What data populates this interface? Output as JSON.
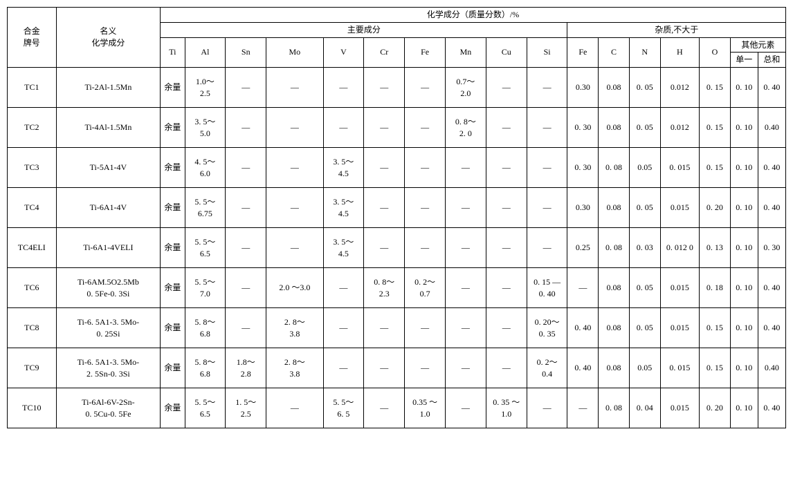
{
  "headers": {
    "grade": "合金\n牌号",
    "name": "名义\n化学成分",
    "chem_top": "化学成分（质量分数）/%",
    "main": "主要成分",
    "imp": "杂质,不大于",
    "other": "其他元素",
    "single": "单一",
    "total": "总和",
    "main_cols": [
      "Ti",
      "Al",
      "Sn",
      "Mo",
      "V",
      "Cr",
      "Fe",
      "Mn",
      "Cu",
      "Si"
    ],
    "imp_cols": [
      "Fe",
      "C",
      "N",
      "H",
      "O"
    ]
  },
  "rows": [
    {
      "g": "TC1",
      "n": "Ti-2Al-1.5Mn",
      "m": [
        "余量",
        "1.0～\n2.5",
        "—",
        "—",
        "—",
        "—",
        "—",
        "0.7～\n2.0",
        "—",
        "—"
      ],
      "i": [
        "0.30",
        "0.08",
        "0. 05",
        "0.012",
        "0. 15",
        "0. 10",
        "0. 40"
      ]
    },
    {
      "g": "TC2",
      "n": "Ti-4Al-1.5Mn",
      "m": [
        "余量",
        "3. 5～\n5.0",
        "—",
        "—",
        "—",
        "—",
        "—",
        "0. 8～\n2. 0",
        "—",
        "—"
      ],
      "i": [
        "0. 30",
        "0.08",
        "0. 05",
        "0.012",
        "0. 15",
        "0. 10",
        "0.40"
      ]
    },
    {
      "g": "TC3",
      "n": "Ti-5A1-4V",
      "m": [
        "余量",
        "4. 5～\n6.0",
        "—",
        "—",
        "3. 5～\n4.5",
        "—",
        "—",
        "—",
        "—",
        "—"
      ],
      "i": [
        "0. 30",
        "0. 08",
        "0.05",
        "0. 015",
        "0. 15",
        "0. 10",
        "0. 40"
      ]
    },
    {
      "g": "TC4",
      "n": "Ti-6A1-4V",
      "m": [
        "余量",
        "5. 5～\n6.75",
        "—",
        "—",
        "3. 5～\n4.5",
        "—",
        "—",
        "—",
        "—",
        "—"
      ],
      "i": [
        "0.30",
        "0.08",
        "0. 05",
        "0.015",
        "0. 20",
        "0. 10",
        "0. 40"
      ]
    },
    {
      "g": "TC4ELI",
      "n": "Ti-6A1-4VELI",
      "m": [
        "余量",
        "5. 5～\n6.5",
        "—",
        "—",
        "3. 5～\n4.5",
        "—",
        "—",
        "—",
        "—",
        "—"
      ],
      "i": [
        "0.25",
        "0. 08",
        "0. 03",
        "0. 012 0",
        "0. 13",
        "0. 10",
        "0. 30"
      ]
    },
    {
      "g": "TC6",
      "n": "Ti-6AM.5O2.5Mb\n0. 5Fe-0. 3Si",
      "m": [
        "余量",
        "5. 5～\n7.0",
        "—",
        "2.0  ～3.0",
        "—",
        "0. 8～\n2.3",
        "0. 2～\n0.7",
        "—",
        "—",
        "0. 15 —\n0. 40"
      ],
      "i": [
        "—",
        "0.08",
        "0. 05",
        "0.015",
        "0. 18",
        "0. 10",
        "0. 40"
      ]
    },
    {
      "g": "TC8",
      "n": "Ti-6. 5A1-3. 5Mo-\n0. 25Si",
      "m": [
        "余量",
        "5. 8～\n6.8",
        "—",
        "2. 8～\n3.8",
        "—",
        "—",
        "—",
        "—",
        "—",
        "0. 20～\n0. 35"
      ],
      "i": [
        "0. 40",
        "0.08",
        "0. 05",
        "0.015",
        "0. 15",
        "0. 10",
        "0. 40"
      ]
    },
    {
      "g": "TC9",
      "n": "Ti-6. 5A1-3. 5Mo-\n2. 5Sn-0. 3Si",
      "m": [
        "余量",
        "5. 8～\n6.8",
        "1.8～\n2.8",
        "2. 8～\n3.8",
        "—",
        "—",
        "—",
        "—",
        "—",
        "0. 2～\n0.4"
      ],
      "i": [
        "0. 40",
        "0.08",
        "0.05",
        "0. 015",
        "0. 15",
        "0. 10",
        "0.40"
      ]
    },
    {
      "g": "TC10",
      "n": "Ti-6Al-6V-2Sn-\n0. 5Cu-0. 5Fe",
      "m": [
        "余量",
        "5. 5～\n6.5",
        "1. 5～\n2.5",
        "—",
        "5. 5～\n6. 5",
        "—",
        "0.35  ～\n1.0",
        "—",
        "0. 35  ～\n1.0",
        "—"
      ],
      "i": [
        "—",
        "0. 08",
        "0. 04",
        "0.015",
        "0. 20",
        "0. 10",
        "0. 40"
      ]
    }
  ]
}
